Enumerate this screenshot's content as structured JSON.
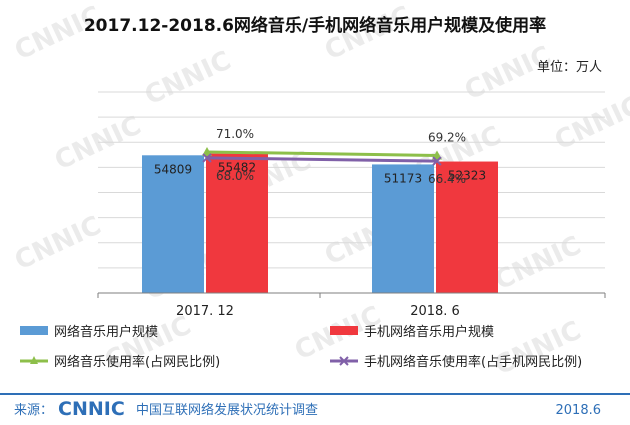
{
  "title": "2017.12-2018.6网络音乐/手机网络音乐用户规模及使用率",
  "unit_label": "单位：万人",
  "chart_data": {
    "type": "bar",
    "categories": [
      "2017.12",
      "2018.6"
    ],
    "series": [
      {
        "name": "网络音乐用户规模",
        "values": [
          54809,
          51173
        ],
        "color": "#5b9bd5"
      },
      {
        "name": "手机网络音乐用户规模",
        "values": [
          55482,
          52323
        ],
        "color": "#f0383e"
      }
    ],
    "rate_series": [
      {
        "name": "网络音乐使用率(占网民比例)",
        "values": [
          71.0,
          69.2
        ],
        "labels": [
          "71.0%",
          "69.2%"
        ],
        "color": "#8dbf4a"
      },
      {
        "name": "手机网络音乐使用率(占手机网民比例)",
        "values": [
          68.0,
          66.4
        ],
        "labels": [
          "68.0%",
          "66.4%"
        ],
        "color": "#8060a8"
      }
    ],
    "tick_labels": [
      "2017. 12",
      "2018. 6"
    ],
    "ylim": [
      0,
      80000
    ],
    "rate_ylim": [
      0,
      100
    ],
    "legend": [
      "网络音乐用户规模",
      "手机网络音乐用户规模",
      "网络音乐使用率(占网民比例)",
      "手机网络音乐使用率(占手机网民比例)"
    ],
    "legend_position": "bottom"
  },
  "footer": {
    "source_label": "来源：",
    "logo_text": "CNNIC",
    "org_name": "中国互联网络发展状况统计调查",
    "date": "2018.6"
  },
  "watermark": "CNNIC",
  "colors": {
    "footer_bar": "#2e6fb7",
    "footer_text": "#2e6fb7"
  }
}
